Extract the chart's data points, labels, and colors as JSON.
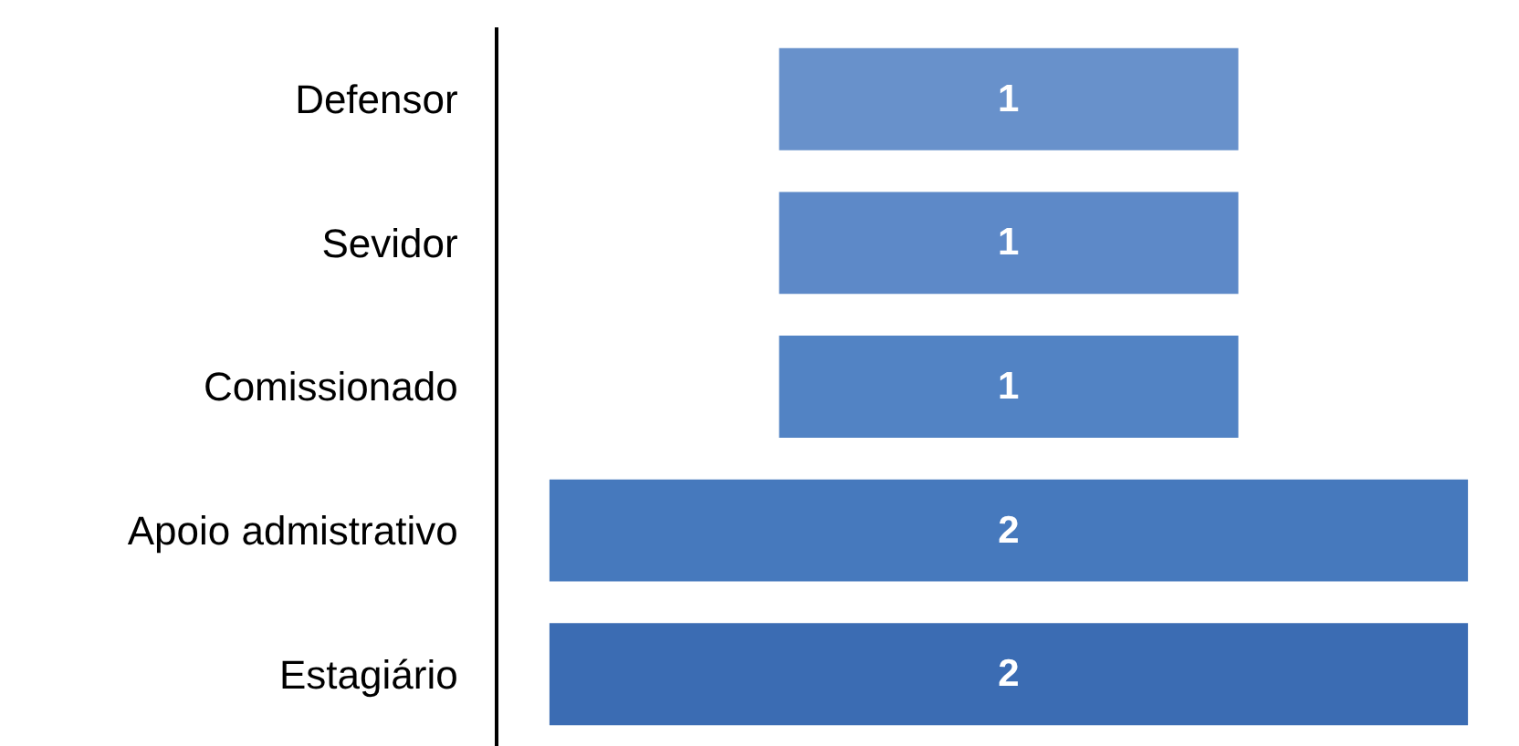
{
  "chart_data": {
    "type": "other",
    "categories": [
      "Defensor",
      "Sevidor",
      "Comissionado",
      "Apoio admistrativo",
      "Estagiário"
    ],
    "values": [
      1,
      1,
      1,
      2,
      2
    ],
    "colors": [
      "#6891cb",
      "#5d89c8",
      "#5283c4",
      "#4679bd",
      "#3b6cb3"
    ],
    "data_labels": true
  }
}
